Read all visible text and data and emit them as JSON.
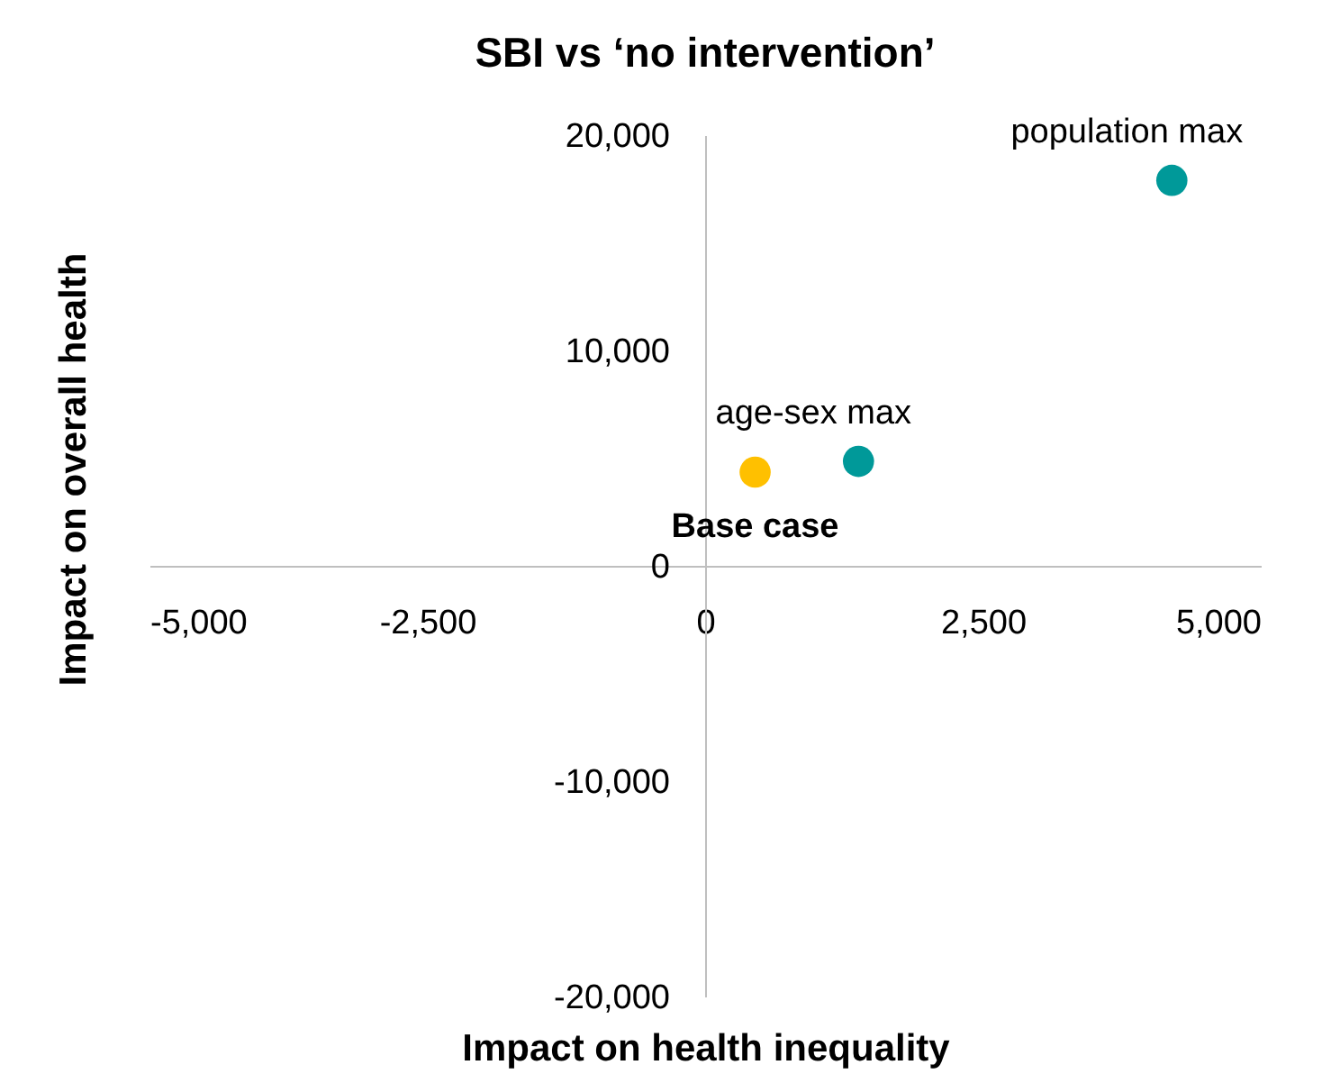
{
  "chart_data": {
    "type": "scatter",
    "title": "SBI vs ‘no intervention’",
    "xlabel": "Impact on health inequality",
    "ylabel": "Impact on overall health",
    "series": [
      {
        "name": "Base case",
        "color": "#ffc000",
        "x": [
          450
        ],
        "values": [
          4350
        ]
      },
      {
        "color": "#009999",
        "x": [
          1380,
          4200
        ],
        "values": [
          4850,
          17900
        ]
      }
    ],
    "annotations": [
      {
        "text": "age-sex max",
        "x": 1380,
        "y": 4850
      },
      {
        "text": "population max",
        "x": 4200,
        "y": 17900
      }
    ],
    "xlim": [
      -5000,
      5000
    ],
    "xticks": [
      {
        "value": -5000,
        "label": "-5,000"
      },
      {
        "value": -2500,
        "label": "-2,500"
      },
      0,
      {
        "value": 2500,
        "label": "2,500"
      },
      {
        "value": 5000,
        "label": "5,000"
      }
    ],
    "ylim": [
      -20000,
      20000
    ],
    "yticks": [
      {
        "value": -20000,
        "label": "-20,000"
      },
      {
        "value": -10000,
        "label": "-10,000"
      },
      0,
      {
        "value": 10000,
        "label": "10,000"
      },
      {
        "value": 20000,
        "label": "20,000"
      }
    ],
    "marker": "circle",
    "grid": false
  }
}
